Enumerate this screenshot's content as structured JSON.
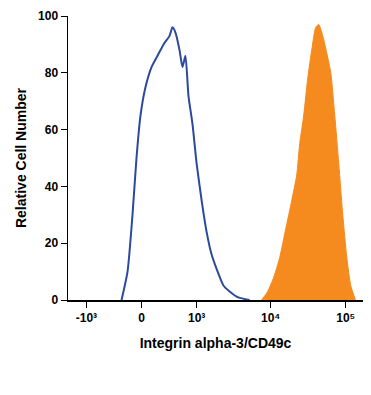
{
  "chart_data": {
    "type": "line",
    "x_label": "Integrin alpha-3/CD49c",
    "y_label": "Relative Cell Number",
    "xlim": [
      -1800,
      170000
    ],
    "xticks": [
      {
        "value": -1000,
        "label": "-10³"
      },
      0,
      {
        "value": 1000,
        "label": "10³"
      },
      {
        "value": 10000,
        "label": "10⁴"
      },
      {
        "value": 100000,
        "label": "10⁵"
      }
    ],
    "ylim": [
      0,
      100
    ],
    "yticks": [
      0,
      20,
      40,
      60,
      80,
      100
    ],
    "grid": false,
    "series": [
      {
        "type": "line",
        "color": "#2b4a9e",
        "x": [
          -249,
          -169,
          -107,
          -59,
          -12,
          47,
          119,
          195,
          278,
          370,
          420,
          476,
          553,
          616,
          684,
          760,
          871,
          1000,
          1177,
          1379,
          1616,
          1952,
          2353,
          2835,
          3630,
          5240
        ],
        "values": [
          0,
          10,
          30,
          50,
          65,
          75,
          82,
          86,
          90,
          93,
          96,
          94,
          88,
          82,
          86,
          72,
          62,
          48,
          35,
          24,
          16,
          10,
          5,
          3,
          1,
          0
        ]
      },
      {
        "type": "area",
        "color": "#f58a1f",
        "x": [
          7600,
          9130,
          10990,
          13220,
          15900,
          19100,
          22270,
          24400,
          27600,
          31200,
          35300,
          39900,
          43700,
          49500,
          55900,
          63300,
          71500,
          80900,
          91400,
          103400,
          116900,
          135000
        ],
        "values": [
          0,
          3,
          8,
          15,
          25,
          35,
          44,
          55,
          65,
          78,
          88,
          96,
          97,
          93,
          87,
          80,
          65,
          48,
          30,
          15,
          5,
          0
        ]
      }
    ]
  }
}
